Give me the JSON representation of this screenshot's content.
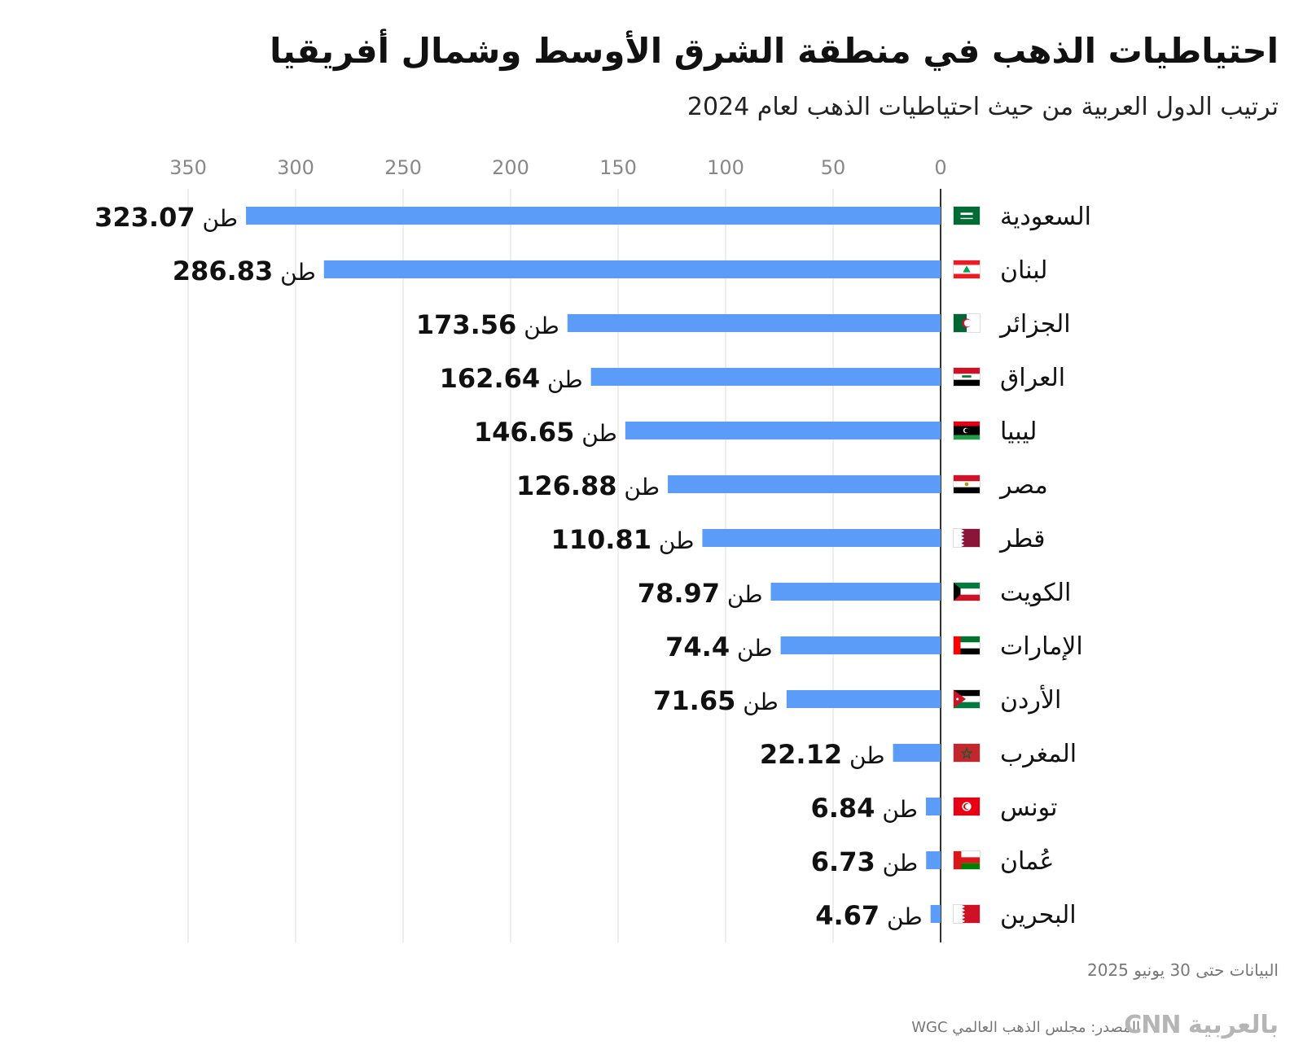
{
  "header": {
    "title": "احتياطيات الذهب في منطقة الشرق الأوسط وشمال أفريقيا",
    "subtitle": "ترتيب الدول العربية من حيث احتياطيات الذهب لعام 2024"
  },
  "footer": {
    "note": "البيانات حتى 30 يونيو 2025",
    "source": "المصدر: مجلس الذهب العالمي WGC",
    "brand": "CNN بالعربية"
  },
  "colors": {
    "bar": "#5a9cf8",
    "grid": "#dddddd",
    "axis": "#333333",
    "tick": "#888888"
  },
  "chart_data": {
    "type": "bar",
    "orientation": "horizontal",
    "title": "احتياطيات الذهب في منطقة الشرق الأوسط وشمال أفريقيا",
    "subtitle": "ترتيب الدول العربية من حيث احتياطيات الذهب لعام 2024",
    "unit": "طن",
    "xlim": [
      0,
      350
    ],
    "ticks": [
      0,
      50,
      100,
      150,
      200,
      250,
      300,
      350
    ],
    "categories": [
      "السعودية",
      "لبنان",
      "الجزائر",
      "العراق",
      "ليبيا",
      "مصر",
      "قطر",
      "الكويت",
      "الإمارات",
      "الأردن",
      "المغرب",
      "تونس",
      "عُمان",
      "البحرين"
    ],
    "values": [
      323.07,
      286.83,
      173.56,
      162.64,
      146.65,
      126.88,
      110.81,
      78.97,
      74.4,
      71.65,
      22.12,
      6.84,
      6.73,
      4.67
    ],
    "value_labels": [
      "323.07",
      "286.83",
      "173.56",
      "162.64",
      "146.65",
      "126.88",
      "110.81",
      "78.97",
      "74.4",
      "71.65",
      "22.12",
      "6.84",
      "6.73",
      "4.67"
    ],
    "flags": [
      "saudi-flag-icon",
      "lebanon-flag-icon",
      "algeria-flag-icon",
      "iraq-flag-icon",
      "libya-flag-icon",
      "egypt-flag-icon",
      "qatar-flag-icon",
      "kuwait-flag-icon",
      "uae-flag-icon",
      "jordan-flag-icon",
      "morocco-flag-icon",
      "tunisia-flag-icon",
      "oman-flag-icon",
      "bahrain-flag-icon"
    ]
  }
}
